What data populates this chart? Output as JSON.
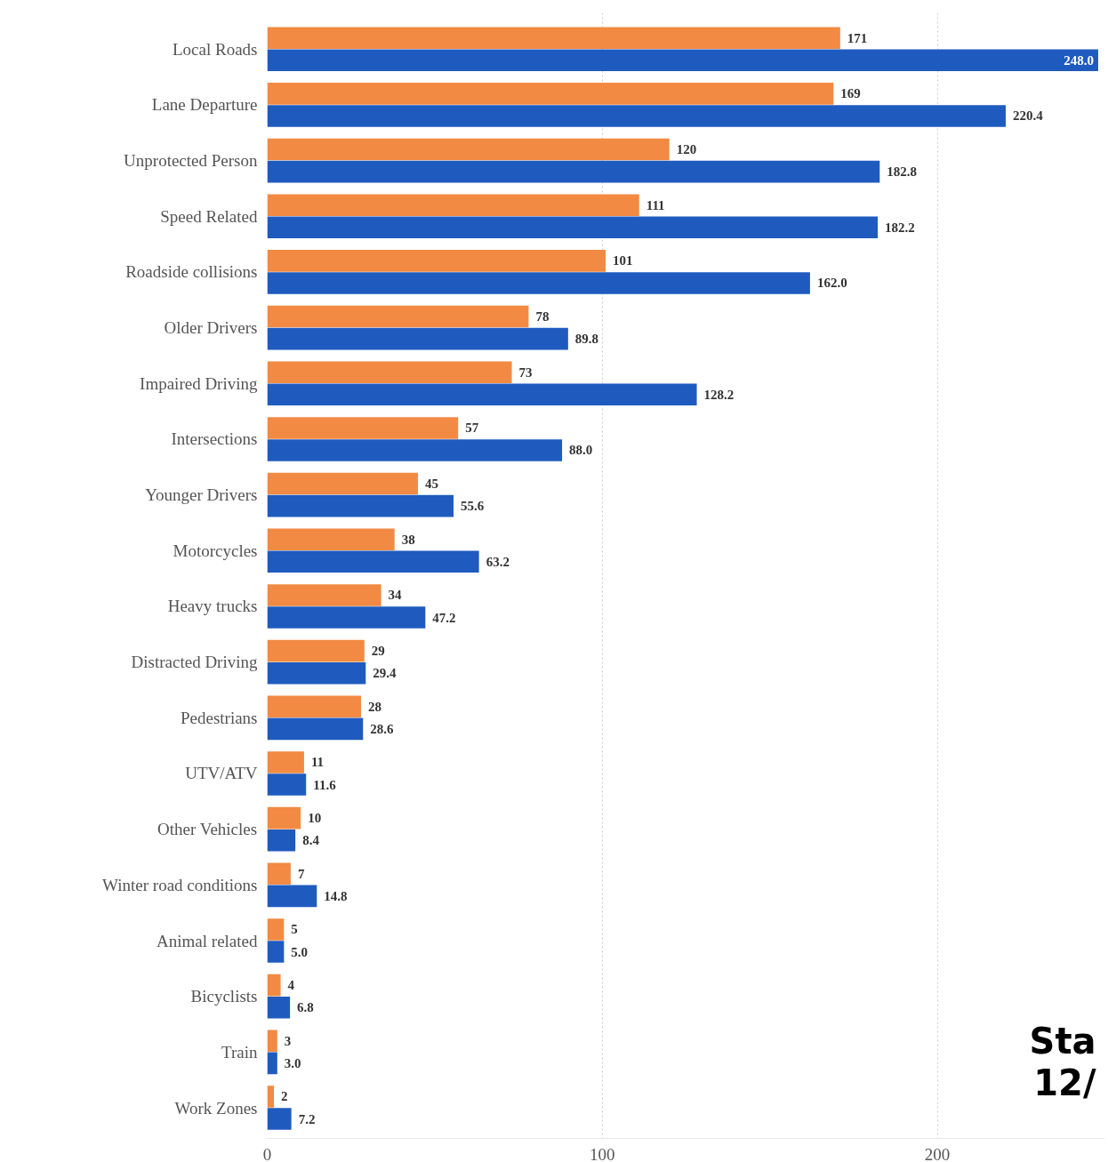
{
  "chart_data": {
    "type": "bar",
    "orientation": "horizontal",
    "categories": [
      "Local Roads",
      "Lane Departure",
      "Unprotected Person",
      "Speed Related",
      "Roadside collisions",
      "Older Drivers",
      "Impaired Driving",
      "Intersections",
      "Younger Drivers",
      "Motorcycles",
      "Heavy trucks",
      "Distracted Driving",
      "Pedestrians",
      "UTV/ATV",
      "Other Vehicles",
      "Winter road conditions",
      "Animal related",
      "Bicyclists",
      "Train",
      "Work Zones"
    ],
    "series": [
      {
        "color": "#f28a43",
        "values": [
          171,
          169,
          120,
          111,
          101,
          78,
          73,
          57,
          45,
          38,
          34,
          29,
          28,
          11,
          10,
          7,
          5,
          4,
          3,
          2
        ],
        "value_labels": [
          "171",
          "169",
          "120",
          "111",
          "101",
          "78",
          "73",
          "57",
          "45",
          "38",
          "34",
          "29",
          "28",
          "11",
          "10",
          "7",
          "5",
          "4",
          "3",
          "2"
        ]
      },
      {
        "color": "#1f5bbf",
        "values": [
          248.0,
          220.4,
          182.8,
          182.2,
          162.0,
          89.8,
          128.2,
          88.0,
          55.6,
          63.2,
          47.2,
          29.4,
          28.6,
          11.6,
          8.4,
          14.8,
          5.0,
          6.8,
          3.0,
          7.2
        ],
        "value_labels": [
          "248.0",
          "220.4",
          "182.8",
          "182.2",
          "162.0",
          "89.8",
          "128.2",
          "88.0",
          "55.6",
          "63.2",
          "47.2",
          "29.4",
          "28.6",
          "11.6",
          "8.4",
          "14.8",
          "5.0",
          "6.8",
          "3.0",
          "7.2"
        ]
      }
    ],
    "xlim": [
      0,
      250
    ],
    "xticks": [
      0,
      100,
      200
    ],
    "grid": "x",
    "annotations": [
      "Sta",
      "12/"
    ]
  }
}
